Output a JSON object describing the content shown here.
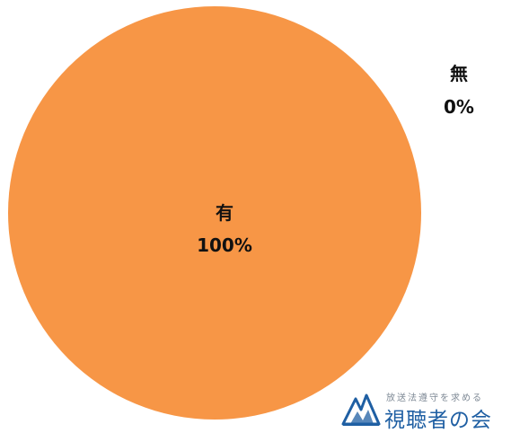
{
  "chart_data": {
    "type": "pie",
    "slices": [
      {
        "label": "有",
        "value": 100,
        "percent_label": "100%",
        "color": "#f79646"
      },
      {
        "label": "無",
        "value": 0,
        "percent_label": "0%",
        "color": "#4f81bd"
      }
    ],
    "data_labels": "inside (category + percent)"
  },
  "logo": {
    "tagline": "放送法遵守を求める",
    "name": "視聴者の会",
    "colors": {
      "mark_blue": "#1f5fa3",
      "text_blue": "#1f5fa3"
    }
  }
}
